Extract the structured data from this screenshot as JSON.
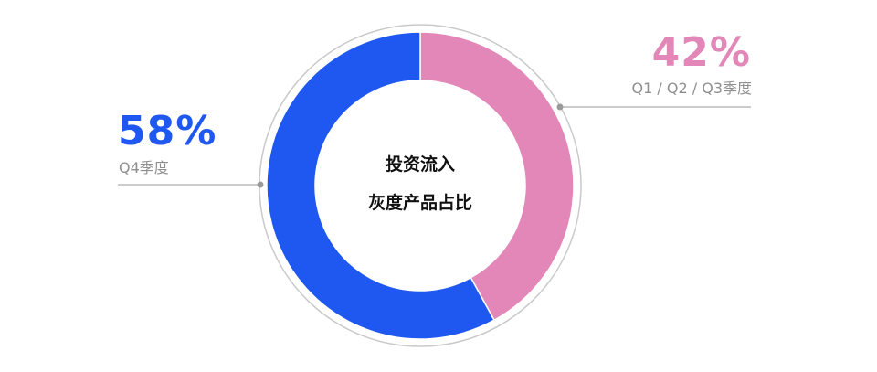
{
  "chart_data": {
    "type": "pie",
    "variant": "donut",
    "center_label": [
      "投资流入",
      "灰度产品占比"
    ],
    "slices": [
      {
        "label": "Q1 / Q2 / Q3季度",
        "value": 42,
        "display": "42%",
        "color": "#e287b8"
      },
      {
        "label": "Q4季度",
        "value": 58,
        "display": "58%",
        "color": "#1e58f0"
      }
    ],
    "legend": "callouts"
  }
}
